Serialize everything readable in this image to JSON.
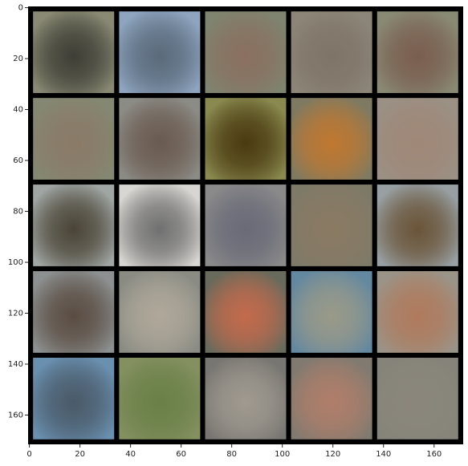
{
  "chart_data": {
    "type": "image",
    "xlim": [
      -0.5,
      171.5
    ],
    "ylim": [
      171.5,
      -0.5
    ],
    "xticks": [
      0,
      20,
      40,
      60,
      80,
      100,
      120,
      140,
      160
    ],
    "yticks": [
      0,
      20,
      40,
      60,
      80,
      100,
      120,
      140,
      160
    ],
    "grid": false,
    "background": "#000000",
    "tiles": [
      [
        [
          "#8a8a74",
          "#3e3e36"
        ],
        [
          "#8ea4bf",
          "#5a6a7a"
        ],
        [
          "#7f8470",
          "#8a7060"
        ],
        [
          "#8c8678",
          "#7f7468"
        ],
        [
          "#898a74",
          "#7a5e50"
        ]
      ],
      [
        [
          "#848872",
          "#8a7a68"
        ],
        [
          "#8c8c86",
          "#6a5a50"
        ],
        [
          "#8a8a50",
          "#4a3a10"
        ],
        [
          "#7e7a62",
          "#c07830"
        ],
        [
          "#9a9084",
          "#a08878"
        ]
      ],
      [
        [
          "#a0a6a4",
          "#4a4436"
        ],
        [
          "#d8d6d2",
          "#707070"
        ],
        [
          "#8a8a8a",
          "#6a6a78"
        ],
        [
          "#7e7a68",
          "#8a7a64"
        ],
        [
          "#98a0a4",
          "#6a5438"
        ]
      ],
      [
        [
          "#8c9090",
          "#5a4c42"
        ],
        [
          "#8a8c84",
          "#b0a89a"
        ],
        [
          "#686a5c",
          "#c46a4c"
        ],
        [
          "#6488a0",
          "#9a9a88"
        ],
        [
          "#9a9488",
          "#b07a5c"
        ]
      ],
      [
        [
          "#6a90b0",
          "#4a5a68"
        ],
        [
          "#849060",
          "#6a8048"
        ],
        [
          "#787672",
          "#a09a90"
        ],
        [
          "#807a70",
          "#b07e6a"
        ],
        [
          "#86847a",
          "#8a867c"
        ]
      ]
    ]
  }
}
